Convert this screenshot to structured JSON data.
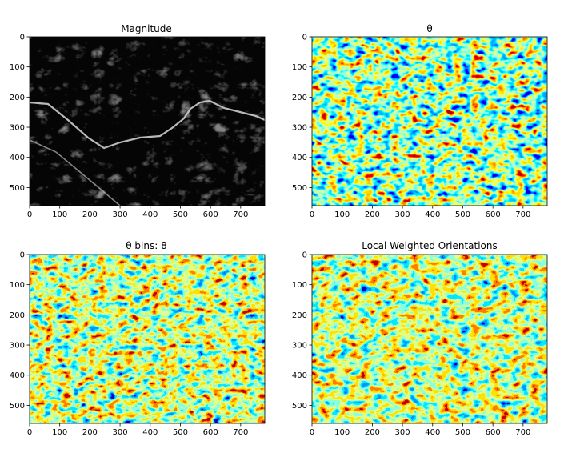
{
  "chart_data": [
    {
      "type": "heatmap",
      "title": "Magnitude",
      "colormap": "gray",
      "xlim": [
        0,
        780
      ],
      "ylim": [
        560,
        0
      ],
      "xticks": [
        0,
        100,
        200,
        300,
        400,
        500,
        600,
        700
      ],
      "yticks": [
        0,
        100,
        200,
        300,
        400,
        500
      ],
      "content": "edge magnitude image of mountain ridges, dark background with bright white edge contours"
    },
    {
      "type": "heatmap",
      "title": "θ",
      "colormap": "jet",
      "xlim": [
        0,
        780
      ],
      "ylim": [
        560,
        0
      ],
      "xticks": [
        0,
        100,
        200,
        300,
        400,
        500,
        600,
        700
      ],
      "yticks": [
        0,
        100,
        200,
        300,
        400,
        500
      ],
      "content": "continuous gradient orientation map"
    },
    {
      "type": "heatmap",
      "title": "θ bins: 8",
      "colormap": "jet",
      "xlim": [
        0,
        780
      ],
      "ylim": [
        560,
        0
      ],
      "xticks": [
        0,
        100,
        200,
        300,
        400,
        500,
        600,
        700
      ],
      "yticks": [
        0,
        100,
        200,
        300,
        400,
        500
      ],
      "content": "orientation quantized into 8 bins"
    },
    {
      "type": "heatmap",
      "title": "Local Weighted Orientations",
      "colormap": "jet",
      "xlim": [
        0,
        780
      ],
      "ylim": [
        560,
        0
      ],
      "xticks": [
        0,
        100,
        200,
        300,
        400,
        500,
        600,
        700
      ],
      "yticks": [
        0,
        100,
        200,
        300,
        400,
        500
      ],
      "content": "locally weighted dominant orientation map"
    }
  ],
  "colors": {
    "background": "#ffffff",
    "magnitude_bg": "#050505",
    "edge": "#d8d8d8"
  }
}
